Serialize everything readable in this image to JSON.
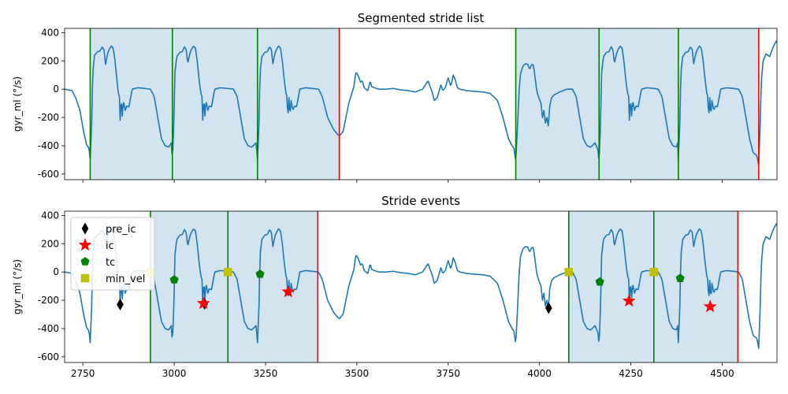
{
  "chart_data": [
    {
      "type": "line",
      "title": "Segmented stride list",
      "xlabel": "",
      "ylabel": "gyr_ml (°/s)",
      "xlim": [
        2700,
        4650
      ],
      "ylim": [
        -640,
        430
      ],
      "yticks": [
        400,
        200,
        0,
        -200,
        -400,
        -600
      ],
      "xticks": [
        2750,
        3000,
        3250,
        3500,
        3750,
        4000,
        4250,
        4500
      ],
      "show_xtick_labels": false,
      "grid": false,
      "line_color": "#1f77b4",
      "span_color": "#1f77b4",
      "start_color": "#008000",
      "end_color": "#ff0000",
      "strides": [
        {
          "start": 2770,
          "end": 2995
        },
        {
          "start": 2995,
          "end": 3228
        },
        {
          "start": 3228,
          "end": 3452
        },
        {
          "start": 3935,
          "end": 4163
        },
        {
          "start": 4163,
          "end": 4380
        },
        {
          "start": 4380,
          "end": 4600
        }
      ],
      "stride_starts": [
        2770,
        2995,
        3228,
        3935,
        4163,
        4380
      ],
      "stride_ends": [
        3452,
        4600
      ]
    },
    {
      "type": "line",
      "title": "Stride events",
      "xlabel": "",
      "ylabel": "gyr_ml (°/s)",
      "xlim": [
        2700,
        4650
      ],
      "ylim": [
        -640,
        430
      ],
      "yticks": [
        400,
        200,
        0,
        -200,
        -400,
        -600
      ],
      "xticks": [
        2750,
        3000,
        3250,
        3500,
        3750,
        4000,
        4250,
        4500
      ],
      "show_xtick_labels": true,
      "grid": false,
      "legend_position": "top-left",
      "line_color": "#1f77b4",
      "span_color": "#1f77b4",
      "start_color": "#008000",
      "end_color": "#ff0000",
      "strides": [
        {
          "start": 2935,
          "end": 3147
        },
        {
          "start": 3147,
          "end": 3393
        },
        {
          "start": 4080,
          "end": 4313
        },
        {
          "start": 4313,
          "end": 4543
        }
      ],
      "stride_starts": [
        2935,
        3147,
        4080,
        4313
      ],
      "stride_ends": [
        3393,
        4543
      ],
      "events": [
        {
          "name": "pre_ic",
          "marker": "diamond",
          "color": "#000000",
          "points": [
            [
              2852,
              -230
            ],
            [
              3083,
              -225
            ],
            [
              4025,
              -255
            ]
          ]
        },
        {
          "name": "ic",
          "marker": "star",
          "color": "#ff0000",
          "points": [
            [
              3080,
              -222
            ],
            [
              3312,
              -140
            ],
            [
              4245,
              -205
            ],
            [
              4467,
              -245
            ]
          ]
        },
        {
          "name": "tc",
          "marker": "pentagon",
          "color": "#008000",
          "points": [
            [
              3000,
              -55
            ],
            [
              3235,
              -15
            ],
            [
              4165,
              -70
            ],
            [
              4385,
              -45
            ]
          ]
        },
        {
          "name": "min_vel",
          "marker": "square",
          "color": "#bfbf00",
          "points": [
            [
              2935,
              0
            ],
            [
              3147,
              0
            ],
            [
              4080,
              0
            ],
            [
              4313,
              0
            ]
          ]
        }
      ]
    }
  ],
  "signal": {
    "anchors": [
      [
        2700,
        0
      ],
      [
        2720,
        -10
      ],
      [
        2730,
        -60
      ],
      [
        2742,
        -150
      ],
      [
        2752,
        -300
      ],
      [
        2760,
        -390
      ],
      [
        2767,
        -420
      ],
      [
        2770,
        -500
      ],
      [
        2774,
        -250
      ],
      [
        2777,
        120
      ],
      [
        2782,
        240
      ],
      [
        2790,
        265
      ],
      [
        2797,
        270
      ],
      [
        2803,
        300
      ],
      [
        2808,
        275
      ],
      [
        2812,
        175
      ],
      [
        2818,
        255
      ],
      [
        2823,
        285
      ],
      [
        2828,
        305
      ],
      [
        2833,
        290
      ],
      [
        2838,
        200
      ],
      [
        2843,
        70
      ],
      [
        2847,
        -30
      ],
      [
        2850,
        -50
      ],
      [
        2852,
        -220
      ],
      [
        2855,
        -60
      ],
      [
        2858,
        -190
      ],
      [
        2861,
        -80
      ],
      [
        2866,
        -150
      ],
      [
        2870,
        -120
      ],
      [
        2876,
        -125
      ],
      [
        2885,
        0
      ],
      [
        2900,
        10
      ],
      [
        2920,
        5
      ],
      [
        2935,
        0
      ],
      [
        2945,
        -50
      ],
      [
        2955,
        -200
      ],
      [
        2965,
        -350
      ],
      [
        2975,
        -400
      ],
      [
        2985,
        -410
      ],
      [
        2992,
        -380
      ],
      [
        2995,
        -500
      ],
      [
        2999,
        -250
      ],
      [
        3002,
        120
      ],
      [
        3007,
        230
      ],
      [
        3015,
        260
      ],
      [
        3022,
        265
      ],
      [
        3028,
        300
      ],
      [
        3033,
        280
      ],
      [
        3037,
        180
      ],
      [
        3043,
        255
      ],
      [
        3048,
        285
      ],
      [
        3053,
        305
      ],
      [
        3058,
        290
      ],
      [
        3063,
        200
      ],
      [
        3068,
        70
      ],
      [
        3073,
        -30
      ],
      [
        3076,
        -50
      ],
      [
        3078,
        -220
      ],
      [
        3081,
        -60
      ],
      [
        3084,
        -190
      ],
      [
        3087,
        -80
      ],
      [
        3092,
        -150
      ],
      [
        3096,
        -120
      ],
      [
        3102,
        -125
      ],
      [
        3111,
        0
      ],
      [
        3126,
        10
      ],
      [
        3146,
        5
      ],
      [
        3162,
        0
      ],
      [
        3172,
        -50
      ],
      [
        3182,
        -200
      ],
      [
        3192,
        -350
      ],
      [
        3202,
        -400
      ],
      [
        3212,
        -410
      ],
      [
        3224,
        -380
      ],
      [
        3228,
        -500
      ],
      [
        3232,
        -250
      ],
      [
        3235,
        120
      ],
      [
        3240,
        230
      ],
      [
        3248,
        260
      ],
      [
        3255,
        265
      ],
      [
        3261,
        300
      ],
      [
        3266,
        280
      ],
      [
        3270,
        180
      ],
      [
        3276,
        255
      ],
      [
        3281,
        285
      ],
      [
        3286,
        305
      ],
      [
        3291,
        290
      ],
      [
        3296,
        200
      ],
      [
        3301,
        70
      ],
      [
        3306,
        -30
      ],
      [
        3309,
        -50
      ],
      [
        3311,
        -220
      ],
      [
        3314,
        -60
      ],
      [
        3317,
        -190
      ],
      [
        3320,
        -80
      ],
      [
        3325,
        -150
      ],
      [
        3329,
        -120
      ],
      [
        3335,
        -125
      ],
      [
        3344,
        0
      ],
      [
        3359,
        10
      ],
      [
        3379,
        5
      ],
      [
        3395,
        0
      ],
      [
        3405,
        -50
      ],
      [
        3420,
        -200
      ],
      [
        3435,
        -280
      ],
      [
        3447,
        -320
      ],
      [
        3452,
        -330
      ],
      [
        3462,
        -300
      ],
      [
        3470,
        -200
      ],
      [
        3478,
        -100
      ],
      [
        3485,
        -40
      ],
      [
        3492,
        20
      ],
      [
        3497,
        120
      ],
      [
        3503,
        100
      ],
      [
        3510,
        50
      ],
      [
        3515,
        60
      ],
      [
        3520,
        10
      ],
      [
        3530,
        -10
      ],
      [
        3537,
        60
      ],
      [
        3540,
        20
      ],
      [
        3548,
        10
      ],
      [
        3560,
        0
      ],
      [
        3580,
        0
      ],
      [
        3600,
        5
      ],
      [
        3620,
        -5
      ],
      [
        3640,
        -10
      ],
      [
        3660,
        -20
      ],
      [
        3680,
        0
      ],
      [
        3695,
        60
      ],
      [
        3700,
        20
      ],
      [
        3705,
        -10
      ],
      [
        3712,
        -80
      ],
      [
        3720,
        -60
      ],
      [
        3730,
        30
      ],
      [
        3735,
        -10
      ],
      [
        3742,
        10
      ],
      [
        3750,
        80
      ],
      [
        3757,
        20
      ],
      [
        3764,
        100
      ],
      [
        3770,
        60
      ],
      [
        3775,
        10
      ],
      [
        3782,
        0
      ],
      [
        3800,
        -10
      ],
      [
        3820,
        -15
      ],
      [
        3845,
        -20
      ],
      [
        3865,
        -30
      ],
      [
        3885,
        -80
      ],
      [
        3900,
        -200
      ],
      [
        3915,
        -350
      ],
      [
        3925,
        -400
      ],
      [
        3930,
        -420
      ],
      [
        3935,
        -510
      ],
      [
        3940,
        -250
      ],
      [
        3944,
        -20
      ],
      [
        3948,
        110
      ],
      [
        3955,
        165
      ],
      [
        3962,
        180
      ],
      [
        3968,
        175
      ],
      [
        3973,
        140
      ],
      [
        3978,
        170
      ],
      [
        3983,
        175
      ],
      [
        3987,
        100
      ],
      [
        3993,
        -20
      ],
      [
        3998,
        -60
      ],
      [
        4004,
        -100
      ],
      [
        4008,
        -200
      ],
      [
        4012,
        -150
      ],
      [
        4016,
        -240
      ],
      [
        4020,
        -200
      ],
      [
        4024,
        -260
      ],
      [
        4028,
        -120
      ],
      [
        4033,
        -60
      ],
      [
        4040,
        -40
      ],
      [
        4055,
        -20
      ],
      [
        4075,
        0
      ],
      [
        4090,
        0
      ],
      [
        4100,
        -50
      ],
      [
        4110,
        -200
      ],
      [
        4120,
        -350
      ],
      [
        4130,
        -400
      ],
      [
        4140,
        -410
      ],
      [
        4152,
        -380
      ],
      [
        4160,
        -430
      ],
      [
        4163,
        -520
      ],
      [
        4167,
        -250
      ],
      [
        4170,
        120
      ],
      [
        4175,
        230
      ],
      [
        4183,
        260
      ],
      [
        4190,
        265
      ],
      [
        4196,
        300
      ],
      [
        4201,
        280
      ],
      [
        4205,
        180
      ],
      [
        4211,
        255
      ],
      [
        4216,
        285
      ],
      [
        4221,
        305
      ],
      [
        4226,
        290
      ],
      [
        4231,
        200
      ],
      [
        4236,
        70
      ],
      [
        4241,
        -30
      ],
      [
        4244,
        -50
      ],
      [
        4246,
        -220
      ],
      [
        4249,
        -60
      ],
      [
        4252,
        -190
      ],
      [
        4255,
        -80
      ],
      [
        4260,
        -150
      ],
      [
        4264,
        -120
      ],
      [
        4270,
        -125
      ],
      [
        4279,
        0
      ],
      [
        4294,
        10
      ],
      [
        4314,
        5
      ],
      [
        4325,
        0
      ],
      [
        4335,
        -50
      ],
      [
        4345,
        -200
      ],
      [
        4355,
        -350
      ],
      [
        4365,
        -400
      ],
      [
        4375,
        -410
      ],
      [
        4378,
        -380
      ],
      [
        4380,
        -500
      ],
      [
        4384,
        -250
      ],
      [
        4387,
        120
      ],
      [
        4392,
        230
      ],
      [
        4400,
        260
      ],
      [
        4407,
        265
      ],
      [
        4413,
        300
      ],
      [
        4418,
        280
      ],
      [
        4422,
        180
      ],
      [
        4428,
        255
      ],
      [
        4433,
        285
      ],
      [
        4438,
        305
      ],
      [
        4443,
        290
      ],
      [
        4448,
        200
      ],
      [
        4453,
        70
      ],
      [
        4458,
        -30
      ],
      [
        4461,
        -50
      ],
      [
        4463,
        -220
      ],
      [
        4466,
        -60
      ],
      [
        4469,
        -190
      ],
      [
        4472,
        -80
      ],
      [
        4477,
        -150
      ],
      [
        4481,
        -120
      ],
      [
        4487,
        -125
      ],
      [
        4496,
        0
      ],
      [
        4511,
        10
      ],
      [
        4531,
        5
      ],
      [
        4545,
        0
      ],
      [
        4555,
        -50
      ],
      [
        4565,
        -200
      ],
      [
        4575,
        -350
      ],
      [
        4585,
        -450
      ],
      [
        4595,
        -470
      ],
      [
        4598,
        -510
      ],
      [
        4600,
        -540
      ],
      [
        4604,
        -250
      ],
      [
        4607,
        50
      ],
      [
        4612,
        200
      ],
      [
        4620,
        250
      ],
      [
        4630,
        230
      ],
      [
        4640,
        300
      ],
      [
        4648,
        340
      ],
      [
        4650,
        330
      ]
    ]
  }
}
